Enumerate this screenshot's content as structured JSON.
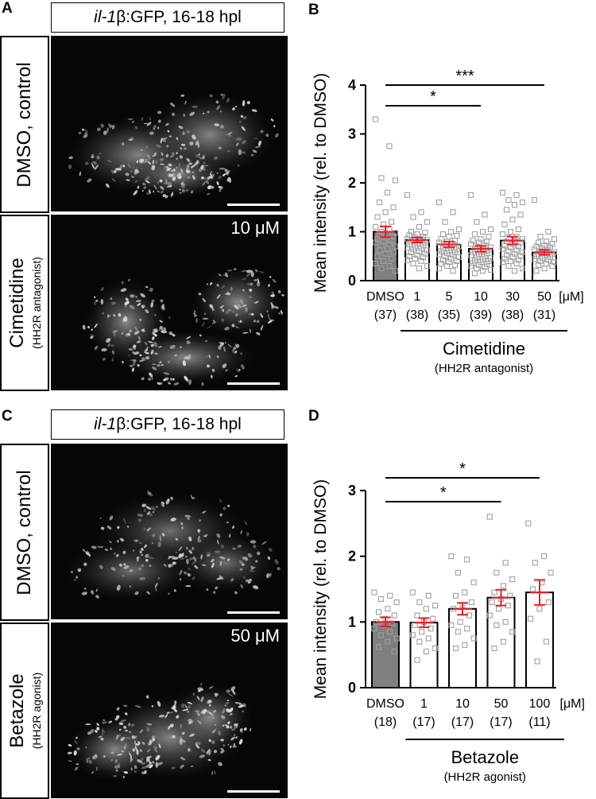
{
  "panels": {
    "A": {
      "letter": "A",
      "title_gene": "il-1",
      "title_beta": "β",
      "title_rest": ":GFP, 16-18 hpl",
      "row1": {
        "label": "DMSO, control",
        "sub": ""
      },
      "row2": {
        "label": "Cimetidine",
        "sub": "(HH2R antagonist)",
        "conc": "10 μM"
      }
    },
    "B": {
      "letter": "B"
    },
    "C": {
      "letter": "C",
      "title_gene": "il-1",
      "title_beta": "β",
      "title_rest": ":GFP, 16-18 hpl",
      "row1": {
        "label": "DMSO, control",
        "sub": ""
      },
      "row2": {
        "label": "Betazole",
        "sub": "(HH2R agonist)",
        "conc": "50 μM"
      }
    },
    "D": {
      "letter": "D"
    }
  },
  "chart_data": [
    {
      "type": "bar",
      "panel": "B",
      "ylabel": "Mean intensity (rel. to DMSO)",
      "ylim": [
        0,
        4
      ],
      "yticks": [
        0,
        1,
        2,
        3,
        4
      ],
      "categories": [
        "DMSO",
        "1",
        "5",
        "10",
        "30",
        "50"
      ],
      "n_labels": [
        "(37)",
        "(38)",
        "(35)",
        "(39)",
        "(38)",
        "(31)"
      ],
      "unit": "[μM]",
      "values": [
        1.0,
        0.83,
        0.74,
        0.65,
        0.82,
        0.58
      ],
      "sem": [
        0.11,
        0.05,
        0.06,
        0.06,
        0.08,
        0.05
      ],
      "bar_colors": [
        "#7f7f7f",
        "#ffffff",
        "#ffffff",
        "#ffffff",
        "#ffffff",
        "#ffffff"
      ],
      "error_color": "#e8202a",
      "point_color": "#a0a0a0",
      "points": [
        [
          3.3,
          2.75,
          2.1,
          2.05,
          1.8,
          1.6,
          1.5,
          1.4,
          1.3,
          1.2,
          1.15,
          1.1,
          1.05,
          1.0,
          0.98,
          0.95,
          0.92,
          0.9,
          0.88,
          0.85,
          0.82,
          0.8,
          0.78,
          0.75,
          0.72,
          0.7,
          0.65,
          0.62,
          0.58,
          0.55,
          0.5,
          0.45,
          0.4,
          0.35,
          0.3,
          0.25,
          0.2
        ],
        [
          1.75,
          1.4,
          1.3,
          1.2,
          1.1,
          1.0,
          0.98,
          0.95,
          0.93,
          0.9,
          0.88,
          0.86,
          0.85,
          0.84,
          0.83,
          0.82,
          0.8,
          0.78,
          0.76,
          0.74,
          0.72,
          0.7,
          0.68,
          0.66,
          0.64,
          0.62,
          0.6,
          0.58,
          0.55,
          0.52,
          0.5,
          0.48,
          0.45,
          0.42,
          0.4,
          0.35,
          0.3,
          0.25
        ],
        [
          1.6,
          1.4,
          1.2,
          1.05,
          1.0,
          0.95,
          0.92,
          0.9,
          0.85,
          0.82,
          0.8,
          0.78,
          0.75,
          0.72,
          0.7,
          0.68,
          0.66,
          0.64,
          0.62,
          0.6,
          0.58,
          0.56,
          0.54,
          0.52,
          0.5,
          0.48,
          0.45,
          0.42,
          0.4,
          0.38,
          0.35,
          0.32,
          0.3,
          0.25,
          0.2
        ],
        [
          1.75,
          1.35,
          1.2,
          1.05,
          1.0,
          0.95,
          0.9,
          0.85,
          0.82,
          0.8,
          0.78,
          0.75,
          0.72,
          0.7,
          0.68,
          0.66,
          0.64,
          0.62,
          0.6,
          0.58,
          0.56,
          0.54,
          0.52,
          0.5,
          0.48,
          0.46,
          0.44,
          0.42,
          0.4,
          0.38,
          0.36,
          0.34,
          0.32,
          0.3,
          0.28,
          0.25,
          0.22,
          0.2,
          0.15
        ],
        [
          1.8,
          1.75,
          1.65,
          1.6,
          1.55,
          1.45,
          1.35,
          1.25,
          1.15,
          1.05,
          1.0,
          0.95,
          0.9,
          0.88,
          0.85,
          0.82,
          0.8,
          0.78,
          0.75,
          0.72,
          0.7,
          0.68,
          0.65,
          0.62,
          0.6,
          0.58,
          0.55,
          0.52,
          0.5,
          0.48,
          0.45,
          0.42,
          0.4,
          0.38,
          0.35,
          0.3,
          0.25,
          0.2
        ],
        [
          1.65,
          1.0,
          0.9,
          0.85,
          0.8,
          0.78,
          0.75,
          0.72,
          0.7,
          0.68,
          0.66,
          0.64,
          0.62,
          0.6,
          0.58,
          0.56,
          0.55,
          0.54,
          0.52,
          0.5,
          0.48,
          0.46,
          0.44,
          0.42,
          0.4,
          0.38,
          0.35,
          0.32,
          0.3,
          0.25,
          0.2
        ]
      ],
      "significance": [
        {
          "from": 0,
          "to": 5,
          "label": "***"
        },
        {
          "from": 0,
          "to": 3,
          "label": "*"
        }
      ],
      "group_label": "Cimetidine",
      "group_sub": "(HH2R antagonist)",
      "group_from": 1,
      "group_to": 5
    },
    {
      "type": "bar",
      "panel": "D",
      "ylabel": "Mean intensity (rel. to DMSO)",
      "ylim": [
        0,
        3
      ],
      "yticks": [
        0,
        1,
        2,
        3
      ],
      "categories": [
        "DMSO",
        "1",
        "10",
        "50",
        "100"
      ],
      "n_labels": [
        "(18)",
        "(17)",
        "(17)",
        "(17)",
        "(11)"
      ],
      "unit": "[μM]",
      "values": [
        1.0,
        0.99,
        1.2,
        1.37,
        1.45
      ],
      "sem": [
        0.07,
        0.07,
        0.09,
        0.12,
        0.19
      ],
      "bar_colors": [
        "#7f7f7f",
        "#ffffff",
        "#ffffff",
        "#ffffff",
        "#ffffff"
      ],
      "error_color": "#e8202a",
      "point_color": "#a0a0a0",
      "points": [
        [
          1.45,
          1.4,
          1.35,
          1.3,
          1.2,
          1.15,
          1.1,
          1.05,
          1.0,
          0.98,
          0.95,
          0.9,
          0.85,
          0.8,
          0.75,
          0.7,
          0.62,
          0.55
        ],
        [
          1.45,
          1.4,
          1.3,
          1.25,
          1.2,
          1.1,
          1.05,
          1.0,
          0.95,
          0.9,
          0.85,
          0.8,
          0.75,
          0.7,
          0.6,
          0.55,
          0.42
        ],
        [
          2.0,
          1.95,
          1.75,
          1.6,
          1.45,
          1.4,
          1.3,
          1.25,
          1.2,
          1.1,
          1.0,
          0.95,
          0.9,
          0.85,
          0.75,
          0.65,
          0.6
        ],
        [
          2.6,
          1.9,
          1.75,
          1.65,
          1.55,
          1.45,
          1.4,
          1.35,
          1.3,
          1.25,
          1.2,
          1.1,
          1.0,
          0.95,
          0.85,
          0.7,
          0.6
        ],
        [
          2.5,
          2.0,
          1.9,
          1.75,
          1.6,
          1.5,
          1.3,
          1.2,
          1.05,
          0.7,
          0.4
        ]
      ],
      "significance": [
        {
          "from": 0,
          "to": 4,
          "label": "*"
        },
        {
          "from": 0,
          "to": 3,
          "label": "*"
        }
      ],
      "group_label": "Betazole",
      "group_sub": "(HH2R agonist)",
      "group_from": 1,
      "group_to": 4
    }
  ]
}
